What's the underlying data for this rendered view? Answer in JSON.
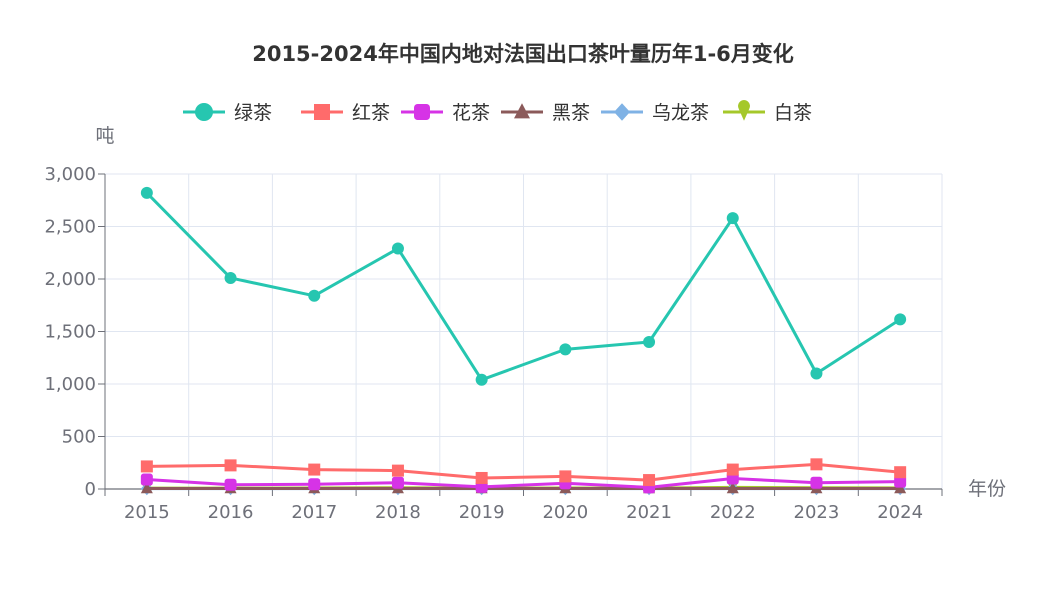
{
  "chart_data": {
    "type": "line",
    "title": "2015-2024年中国内地对法国出口茶叶量历年1-6月变化",
    "xlabel": "年份",
    "ylabel": "吨",
    "categories": [
      "2015",
      "2016",
      "2017",
      "2018",
      "2019",
      "2020",
      "2021",
      "2022",
      "2023",
      "2024"
    ],
    "ylim": [
      0,
      3000
    ],
    "yticks": [
      0,
      500,
      1000,
      1500,
      2000,
      2500,
      3000
    ],
    "ytick_labels": [
      "0",
      "500",
      "1,000",
      "1,500",
      "2,000",
      "2,500",
      "3,000"
    ],
    "grid": true,
    "legend_position": "top-center",
    "series": [
      {
        "name": "绿茶",
        "color": "#26c6b0",
        "marker": "circle",
        "values": [
          2820,
          2010,
          1840,
          2290,
          1040,
          1330,
          1400,
          2580,
          1100,
          1615
        ]
      },
      {
        "name": "红茶",
        "color": "#ff6b6b",
        "marker": "square",
        "values": [
          215,
          225,
          185,
          175,
          105,
          120,
          85,
          185,
          235,
          160
        ]
      },
      {
        "name": "花茶",
        "color": "#d633e6",
        "marker": "rounded-square",
        "values": [
          90,
          40,
          45,
          60,
          20,
          55,
          15,
          100,
          60,
          70
        ]
      },
      {
        "name": "黑茶",
        "color": "#8b5a5a",
        "marker": "triangle",
        "values": [
          5,
          5,
          5,
          5,
          5,
          5,
          5,
          5,
          5,
          5
        ]
      },
      {
        "name": "乌龙茶",
        "color": "#7fb2e5",
        "marker": "diamond",
        "values": [
          3,
          3,
          3,
          3,
          3,
          3,
          3,
          3,
          3,
          3
        ]
      },
      {
        "name": "白茶",
        "color": "#a5c82a",
        "marker": "pin",
        "values": [
          8,
          8,
          10,
          12,
          8,
          10,
          8,
          15,
          12,
          10
        ]
      }
    ]
  }
}
